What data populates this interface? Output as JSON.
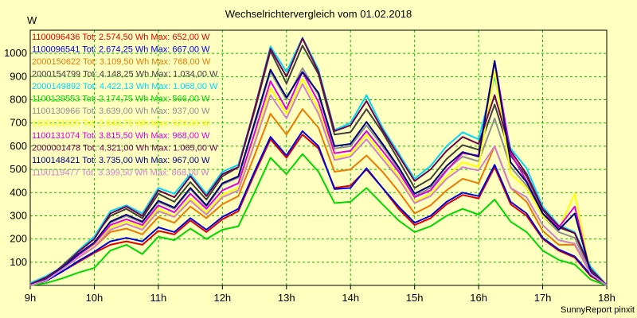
{
  "chart_data": {
    "type": "line",
    "title": "Wechselrichtervergleich vom 01.02.2018",
    "ylabel": "W",
    "xlabel": "",
    "footer": "SunnyReport pinxit",
    "ylim": [
      0,
      1100
    ],
    "xlim": [
      0,
      180
    ],
    "yticks": [
      100,
      200,
      300,
      400,
      500,
      600,
      700,
      800,
      900,
      1000
    ],
    "x_ticks": [
      {
        "x": 0,
        "label": "9h"
      },
      {
        "x": 20,
        "label": "10h"
      },
      {
        "x": 40,
        "label": "11h"
      },
      {
        "x": 60,
        "label": "12h"
      },
      {
        "x": 80,
        "label": "13h"
      },
      {
        "x": 100,
        "label": "14h"
      },
      {
        "x": 120,
        "label": "15h"
      },
      {
        "x": 140,
        "label": "16h"
      },
      {
        "x": 160,
        "label": "17h"
      },
      {
        "x": 180,
        "label": "18h"
      }
    ],
    "x": [
      0,
      5,
      10,
      15,
      20,
      25,
      30,
      35,
      40,
      45,
      50,
      55,
      60,
      65,
      70,
      75,
      80,
      85,
      90,
      95,
      100,
      105,
      110,
      115,
      120,
      125,
      130,
      135,
      140,
      145,
      150,
      155,
      160,
      165,
      170,
      175,
      180
    ],
    "grid": true,
    "legend_position": "top-left",
    "series": [
      {
        "name": "1100096436 Tot: 2.574,50 Wh Max: 652,00 W",
        "color": "#e00000",
        "values": [
          0,
          20,
          60,
          100,
          140,
          175,
          190,
          175,
          235,
          220,
          280,
          230,
          285,
          320,
          480,
          630,
          550,
          650,
          590,
          420,
          430,
          500,
          420,
          330,
          260,
          290,
          350,
          390,
          375,
          510,
          350,
          300,
          200,
          150,
          120,
          40,
          0
        ]
      },
      {
        "name": "1100096541 Tot: 2.674,25 Wh Max: 667,00 W",
        "color": "#0000e0",
        "values": [
          0,
          20,
          60,
          105,
          145,
          190,
          205,
          190,
          250,
          230,
          290,
          240,
          295,
          330,
          490,
          640,
          560,
          665,
          600,
          415,
          420,
          505,
          420,
          340,
          270,
          300,
          360,
          400,
          385,
          520,
          360,
          310,
          205,
          155,
          125,
          45,
          0
        ]
      },
      {
        "name": "2000150622 Tot: 3.109,50 Wh Max: 768,00 W",
        "color": "#f07800",
        "values": [
          0,
          22,
          70,
          120,
          165,
          230,
          245,
          220,
          295,
          270,
          340,
          290,
          350,
          385,
          560,
          740,
          650,
          760,
          680,
          490,
          500,
          560,
          490,
          405,
          310,
          345,
          410,
          460,
          440,
          600,
          420,
          360,
          235,
          175,
          175,
          50,
          0
        ]
      },
      {
        "name": "2000154799 Tot: 4.148,25 Wh Max: 1.034,00 W",
        "color": "#404040",
        "values": [
          0,
          28,
          85,
          150,
          210,
          300,
          330,
          290,
          395,
          360,
          445,
          370,
          470,
          510,
          750,
          1010,
          870,
          1034,
          910,
          650,
          660,
          760,
          660,
          540,
          420,
          460,
          545,
          605,
          585,
          780,
          560,
          470,
          325,
          250,
          225,
          60,
          0
        ]
      },
      {
        "name": "2000149892 Tot: 4.422,13 Wh Max: 1.068,00 W",
        "color": "#00d8f8",
        "values": [
          10,
          40,
          80,
          150,
          210,
          320,
          345,
          310,
          420,
          395,
          480,
          395,
          490,
          520,
          760,
          1030,
          920,
          1068,
          930,
          670,
          700,
          820,
          680,
          570,
          460,
          515,
          600,
          660,
          630,
          900,
          590,
          505,
          340,
          260,
          230,
          80,
          0
        ]
      },
      {
        "name": "1100129553 Tot: 2.174,75 Wh Max: 566,00 W",
        "color": "#00d800",
        "values": [
          0,
          10,
          30,
          55,
          75,
          150,
          175,
          135,
          210,
          195,
          245,
          200,
          240,
          255,
          400,
          550,
          480,
          566,
          490,
          355,
          360,
          420,
          350,
          280,
          230,
          255,
          300,
          330,
          305,
          370,
          275,
          230,
          150,
          110,
          90,
          25,
          0
        ]
      },
      {
        "name": "1100130966 Tot: 3.639,00 Wh Max: 937,00 W",
        "color": "#909090",
        "values": [
          0,
          25,
          75,
          135,
          185,
          270,
          300,
          270,
          360,
          330,
          415,
          340,
          435,
          465,
          690,
          920,
          800,
          937,
          820,
          590,
          600,
          690,
          600,
          500,
          385,
          420,
          500,
          555,
          535,
          720,
          510,
          430,
          300,
          230,
          205,
          55,
          0
        ]
      },
      {
        "name": "1100131025 Tot: 2.840,75 Wh Max: 924,00 W",
        "color": "#ffff00",
        "values": [
          0,
          22,
          70,
          120,
          170,
          250,
          275,
          250,
          330,
          300,
          375,
          315,
          390,
          420,
          620,
          850,
          740,
          890,
          760,
          550,
          565,
          650,
          560,
          470,
          360,
          395,
          470,
          530,
          510,
          924,
          480,
          420,
          300,
          240,
          395,
          50,
          0
        ]
      },
      {
        "name": "1100131074 Tot: 3.815,50 Wh Max: 968,00 W",
        "color": "#e000e0",
        "values": [
          0,
          25,
          75,
          130,
          180,
          260,
          285,
          260,
          345,
          315,
          395,
          330,
          410,
          440,
          655,
          880,
          760,
          920,
          790,
          570,
          580,
          665,
          580,
          490,
          380,
          410,
          495,
          570,
          560,
          968,
          570,
          450,
          310,
          250,
          340,
          50,
          0
        ]
      },
      {
        "name": "2000001478 Tot: 4.321,00 Wh Max: 1.065,00 W",
        "color": "#700050",
        "values": [
          5,
          35,
          80,
          145,
          200,
          310,
          340,
          300,
          410,
          380,
          470,
          385,
          480,
          510,
          760,
          1020,
          900,
          1065,
          920,
          665,
          690,
          795,
          670,
          560,
          450,
          500,
          580,
          640,
          610,
          820,
          580,
          480,
          330,
          255,
          225,
          70,
          0
        ]
      },
      {
        "name": "1100148421 Tot: 3.735,00 Wh Max: 967,00 W",
        "color": "#000080",
        "values": [
          0,
          25,
          75,
          135,
          185,
          275,
          305,
          275,
          365,
          335,
          420,
          345,
          440,
          470,
          700,
          930,
          810,
          920,
          830,
          600,
          610,
          705,
          610,
          510,
          395,
          430,
          515,
          575,
          555,
          967,
          530,
          445,
          310,
          240,
          310,
          55,
          0
        ]
      },
      {
        "name": "1100119477 Tot: 3.399,50 Wh Max: 868,00 W",
        "color": "#d080d0",
        "values": [
          0,
          22,
          70,
          120,
          165,
          240,
          265,
          240,
          320,
          295,
          365,
          305,
          380,
          410,
          610,
          820,
          720,
          868,
          740,
          540,
          555,
          630,
          545,
          460,
          355,
          385,
          460,
          510,
          495,
          600,
          420,
          380,
          260,
          195,
          180,
          50,
          0
        ]
      }
    ]
  }
}
